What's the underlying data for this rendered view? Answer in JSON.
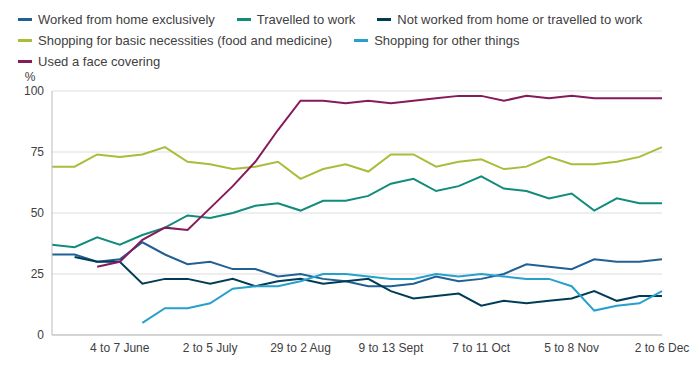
{
  "chart_data": {
    "type": "line",
    "y_label": "%",
    "categories": [
      null,
      null,
      null,
      "4 to 7 June",
      null,
      null,
      null,
      "2 to 5 July",
      null,
      null,
      null,
      "29 to 2 Aug",
      null,
      null,
      null,
      "9 to 13 Sept",
      null,
      null,
      null,
      "7 to 11 Oct",
      null,
      null,
      null,
      "5 to 8 Nov",
      null,
      null,
      null,
      "2 to 6 Dec"
    ],
    "ylim": [
      0,
      100
    ],
    "yticks": [
      0,
      25,
      50,
      75,
      100
    ],
    "grid": true,
    "legend": "top",
    "series": [
      {
        "name": "Worked from home exclusively",
        "color": "#206095",
        "values": [
          33,
          33,
          30,
          31,
          38,
          33,
          29,
          30,
          27,
          27,
          24,
          25,
          23,
          22,
          20,
          20,
          21,
          24,
          22,
          23,
          25,
          29,
          28,
          27,
          31,
          30,
          30,
          31
        ]
      },
      {
        "name": "Travelled to work",
        "color": "#118c7b",
        "values": [
          37,
          36,
          40,
          37,
          41,
          44,
          49,
          48,
          50,
          53,
          54,
          51,
          55,
          55,
          57,
          62,
          64,
          59,
          61,
          65,
          60,
          59,
          56,
          58,
          51,
          56,
          54,
          54
        ]
      },
      {
        "name": "Not worked from home or travelled to work",
        "color": "#003c57",
        "values": [
          null,
          32,
          30,
          30,
          21,
          23,
          23,
          21,
          23,
          20,
          22,
          23,
          21,
          22,
          23,
          18,
          15,
          16,
          17,
          12,
          14,
          13,
          14,
          15,
          18,
          14,
          16,
          16
        ]
      },
      {
        "name": "Shopping for basic necessities (food and medicine)",
        "color": "#a8bd3a",
        "values": [
          69,
          69,
          74,
          73,
          74,
          77,
          71,
          70,
          68,
          69,
          71,
          64,
          68,
          70,
          67,
          74,
          74,
          69,
          71,
          72,
          68,
          69,
          73,
          70,
          70,
          71,
          73,
          77
        ]
      },
      {
        "name": "Shopping for other things",
        "color": "#27a0cc",
        "values": [
          null,
          null,
          null,
          null,
          5,
          11,
          11,
          13,
          19,
          20,
          20,
          22,
          25,
          25,
          24,
          23,
          23,
          25,
          24,
          25,
          24,
          23,
          23,
          20,
          10,
          12,
          13,
          18
        ]
      },
      {
        "name": "Used a face covering",
        "color": "#871a5b",
        "values": [
          null,
          null,
          28,
          30,
          39,
          44,
          43,
          52,
          61,
          71,
          84,
          96,
          96,
          95,
          96,
          95,
          96,
          97,
          98,
          98,
          96,
          98,
          97,
          98,
          97,
          97,
          97,
          97
        ]
      }
    ]
  }
}
